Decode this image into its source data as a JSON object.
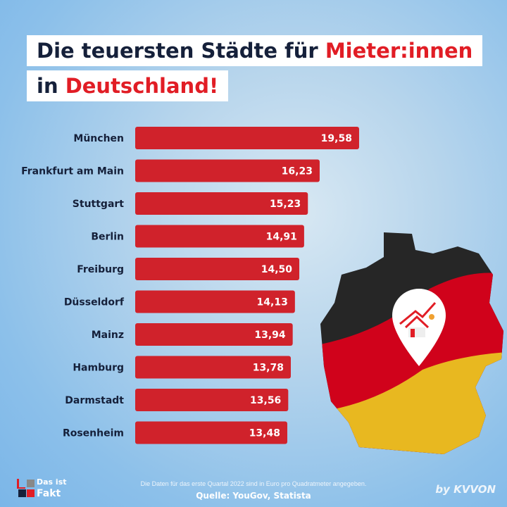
{
  "title": {
    "line1_a": "Die teuersten Städte für ",
    "line1_b": "Mieter:innen",
    "line2_a": "in ",
    "line2_b": "Deutschland!"
  },
  "chart_data": {
    "type": "bar",
    "orientation": "horizontal",
    "categories": [
      "München",
      "Frankfurt am Main",
      "Stuttgart",
      "Berlin",
      "Freiburg",
      "Düsseldorf",
      "Mainz",
      "Hamburg",
      "Darmstadt",
      "Rosenheim"
    ],
    "values": [
      19.58,
      16.23,
      15.23,
      14.91,
      14.5,
      14.13,
      13.94,
      13.78,
      13.56,
      13.48
    ],
    "labels": [
      "19,58",
      "16,23",
      "15,23",
      "14,91",
      "14,50",
      "14,13",
      "13,94",
      "13,78",
      "13,56",
      "13,48"
    ],
    "bar_color": "#d0222b",
    "grid": false
  },
  "footer": {
    "note": "Die Daten für das erste Quartal 2022 sind in Euro pro Quadratmeter angegeben.",
    "source": "Quelle: YouGov, Statista",
    "logo_left_1": "Das ist",
    "logo_left_2": "Fakt",
    "logo_right": "by KVVON"
  },
  "colors": {
    "accent": "#e11d25",
    "text": "#15203a",
    "flag_black": "#262626",
    "flag_red": "#d0021b",
    "flag_gold": "#e8b820"
  }
}
